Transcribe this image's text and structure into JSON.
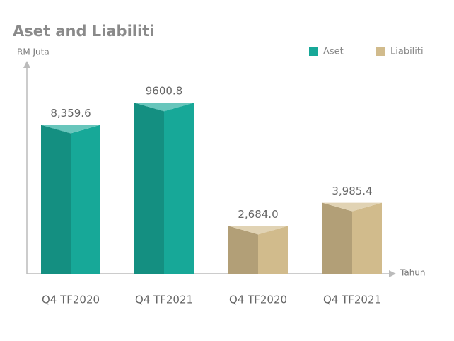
{
  "chart_data": {
    "type": "bar3d",
    "title": "Aset and Liabiliti",
    "y_label": "RM Juta",
    "x_label": "Tahun",
    "categories": [
      "Q4 TF2020",
      "Q4 TF2021",
      "Q4 TF2020",
      "Q4 TF2021"
    ],
    "series": [
      {
        "name": "Aset",
        "color": "#17a898",
        "values": [
          8359.6,
          9600.8,
          null,
          null
        ],
        "value_labels": [
          "8,359.6",
          "9600.8",
          null,
          null
        ]
      },
      {
        "name": "Liabiliti",
        "color": "#d1bb8c",
        "values": [
          null,
          null,
          2684.0,
          3985.4
        ],
        "value_labels": [
          null,
          null,
          "2,684.0",
          "3,985.4"
        ]
      }
    ],
    "ylim": [
      0,
      11000
    ],
    "legend": "top-right"
  }
}
